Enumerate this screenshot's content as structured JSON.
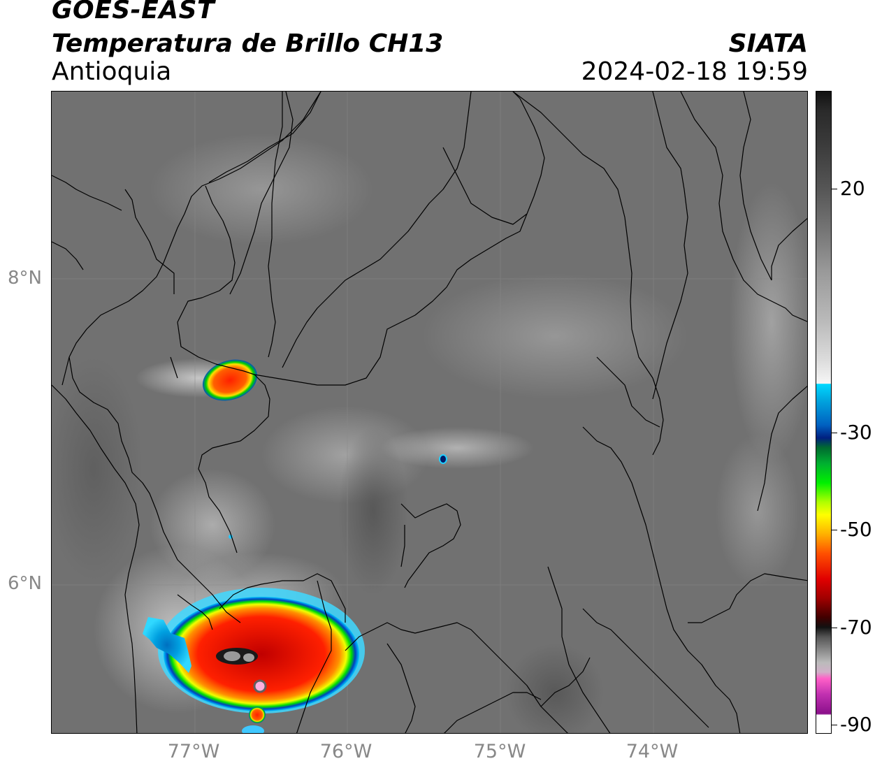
{
  "header": {
    "satellite": "GOES-EAST",
    "product": "Temperatura de Brillo CH13",
    "region": "Antioquia",
    "agency": "SIATA",
    "timestamp": "2024-02-18 19:59"
  },
  "axes": {
    "lat_labels": [
      "8°N",
      "6°N"
    ],
    "lon_labels": [
      "77°W",
      "76°W",
      "75°W",
      "74°W"
    ]
  },
  "colorbar": {
    "labels": [
      "20",
      "-30",
      "-50",
      "-70",
      "-90"
    ],
    "palette": [
      "#111111",
      "#777777",
      "#f6f6f6",
      "#00d8ff",
      "#002080",
      "#00f000",
      "#ffff00",
      "#ff5000",
      "#a00000",
      "#ff60c8",
      "#8a108a"
    ]
  },
  "colors": {
    "background_gray": "#6b6b6b",
    "cold_cloud_red": "#e01010",
    "border_line": "#000000"
  }
}
